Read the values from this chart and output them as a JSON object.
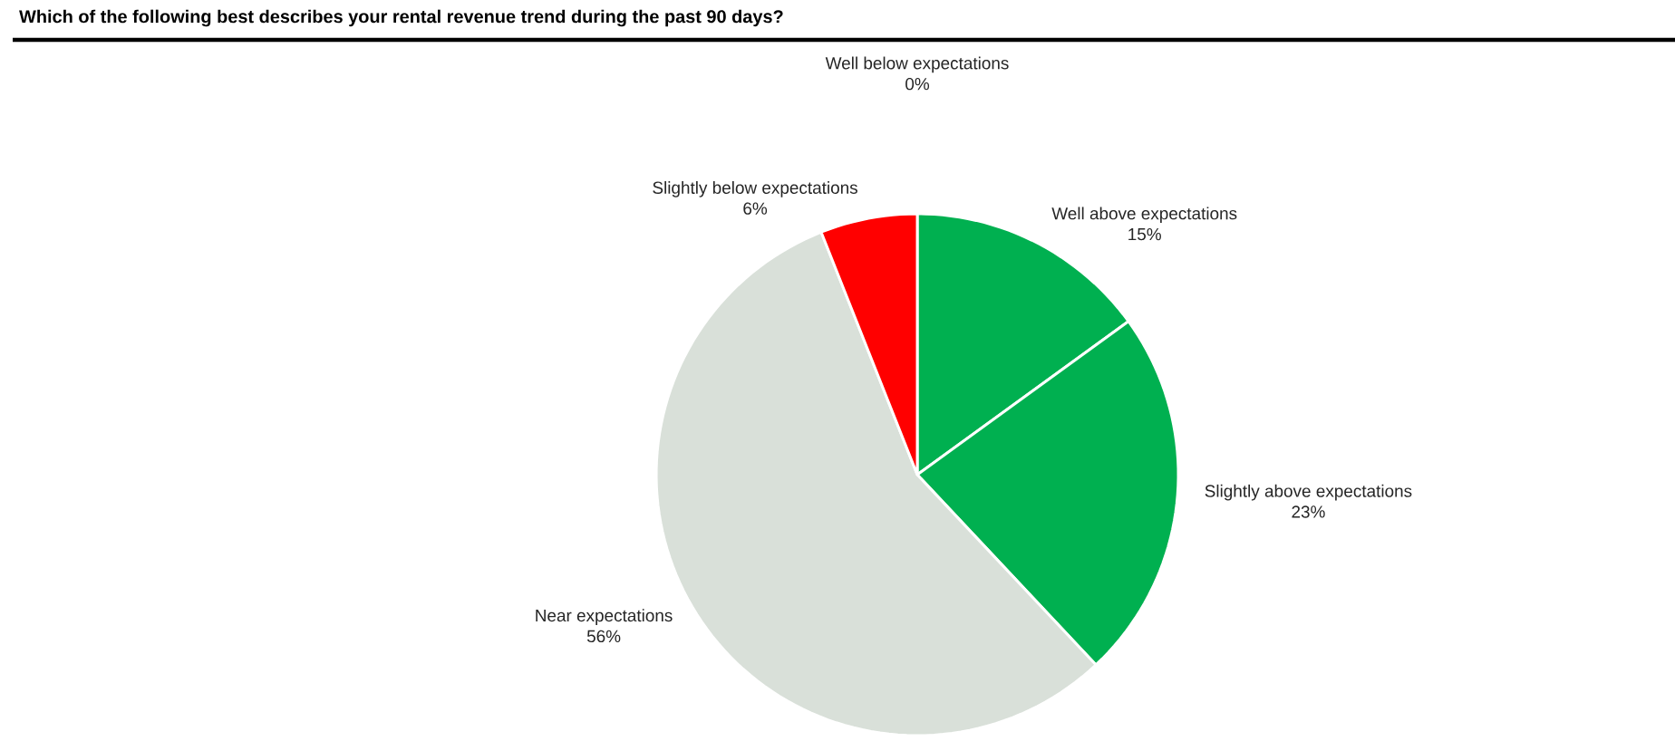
{
  "chart_data": {
    "type": "pie",
    "title": "Which of the following best describes your rental revenue trend during the past 90 days?",
    "categories": [
      "Well above expectations",
      "Slightly above expectations",
      "Near expectations",
      "Slightly below expectations",
      "Well below expectations"
    ],
    "values": [
      15,
      23,
      56,
      6,
      0
    ],
    "colors": [
      "#00b050",
      "#00b050",
      "#d9e0d9",
      "#ff0000",
      "#c00000"
    ],
    "data_labels": true,
    "value_labels": [
      "15%",
      "23%",
      "56%",
      "6%",
      "0%"
    ]
  }
}
